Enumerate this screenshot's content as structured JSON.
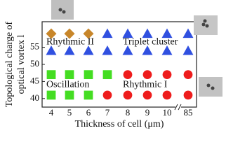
{
  "chart_data": {
    "type": "scatter",
    "x_label": "Thickness of cell (μm)",
    "y_label": [
      "Topological charge of",
      "optical vortex l"
    ],
    "categories": [
      "4",
      "5",
      "6",
      "7",
      "8",
      "9",
      "10",
      "85"
    ],
    "ylim": [
      37.5,
      62.5
    ],
    "yticks": [
      40,
      45,
      50,
      55
    ],
    "series": [
      {
        "name": "Rhythmic II",
        "marker": "diamond",
        "color": "#c8862a",
        "x": [
          "4",
          "5",
          "6"
        ],
        "values": [
          59,
          59,
          59
        ]
      },
      {
        "name": "Triplet cluster",
        "marker": "triangle",
        "color": "#3050e0",
        "x": [
          "7",
          "8",
          "9",
          "10",
          "85",
          "4",
          "5",
          "6",
          "7",
          "8",
          "9",
          "10",
          "85"
        ],
        "values": [
          59,
          59,
          59,
          59,
          59,
          54,
          54,
          54,
          54,
          54,
          54,
          54,
          54
        ]
      },
      {
        "name": "Oscillation",
        "marker": "square",
        "color": "#44dd22",
        "x": [
          "4",
          "5",
          "6",
          "7",
          "4",
          "5",
          "6"
        ],
        "values": [
          47,
          47,
          47,
          47,
          41,
          41,
          41
        ]
      },
      {
        "name": "Rhythmic I",
        "marker": "circle",
        "color": "#ee1c1c",
        "x": [
          "8",
          "9",
          "10",
          "85",
          "7",
          "8",
          "9",
          "10",
          "85"
        ],
        "values": [
          47,
          47,
          47,
          47,
          41,
          41,
          41,
          41,
          41
        ]
      }
    ],
    "annotations": [
      {
        "text": "Rhythmic II",
        "x": "4",
        "y": 56.5
      },
      {
        "text": "Triplet cluster",
        "x": "8",
        "y": 56.5
      },
      {
        "text": "Oscillation",
        "x": "4",
        "y": 44
      },
      {
        "text": "Rhythmic I",
        "x": "8",
        "y": 44
      }
    ]
  }
}
